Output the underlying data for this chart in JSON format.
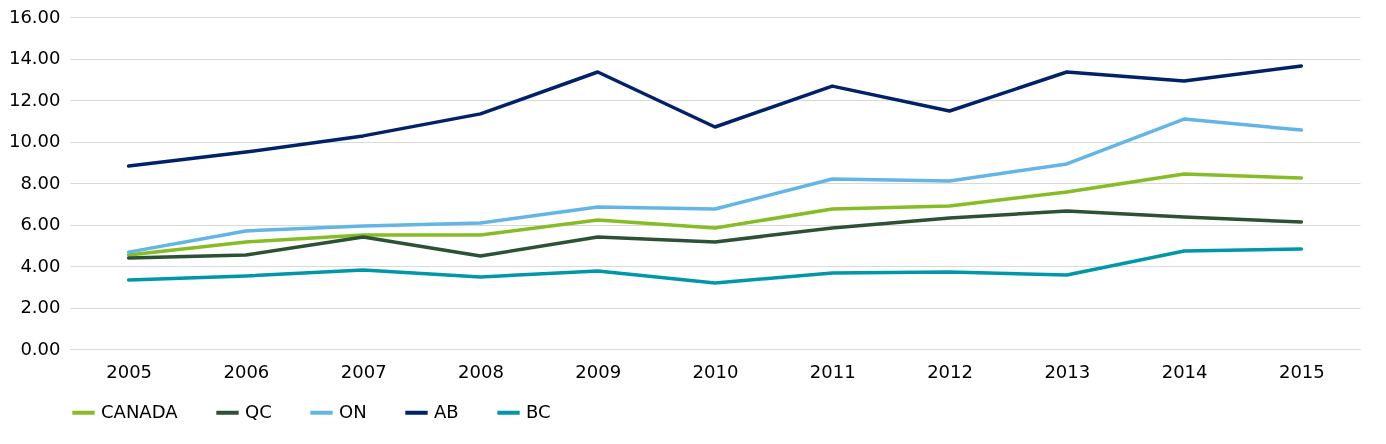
{
  "chart_data": {
    "type": "line",
    "categories": [
      "2005",
      "2006",
      "2007",
      "2008",
      "2009",
      "2010",
      "2011",
      "2012",
      "2013",
      "2014",
      "2015"
    ],
    "series": [
      {
        "name": "CANADA",
        "color": "#86bc25",
        "values": [
          4.53,
          5.16,
          5.49,
          5.49,
          6.22,
          5.83,
          6.75,
          6.89,
          7.57,
          8.43,
          8.24
        ]
      },
      {
        "name": "QC",
        "color": "#2c5234",
        "values": [
          4.39,
          4.53,
          5.4,
          4.48,
          5.4,
          5.16,
          5.83,
          6.31,
          6.65,
          6.36,
          6.12
        ]
      },
      {
        "name": "ON",
        "color": "#62b5e5",
        "values": [
          4.67,
          5.69,
          5.93,
          6.07,
          6.84,
          6.75,
          8.19,
          8.1,
          8.92,
          11.08,
          10.55
        ]
      },
      {
        "name": "AB",
        "color": "#012169",
        "values": [
          8.82,
          9.49,
          10.27,
          11.33,
          13.35,
          10.7,
          12.67,
          11.47,
          13.35,
          12.92,
          13.64
        ]
      },
      {
        "name": "BC",
        "color": "#0097a9",
        "values": [
          3.33,
          3.52,
          3.81,
          3.47,
          3.76,
          3.18,
          3.66,
          3.71,
          3.57,
          4.72,
          4.82
        ]
      }
    ],
    "ylim": [
      0,
      16
    ],
    "yticks": [
      {
        "value": 0,
        "label": "0.00"
      },
      {
        "value": 2,
        "label": "2.00"
      },
      {
        "value": 4,
        "label": "4.00"
      },
      {
        "value": 6,
        "label": "6.00"
      },
      {
        "value": 8,
        "label": "8.00"
      },
      {
        "value": 10,
        "label": "10.00"
      },
      {
        "value": 12,
        "label": "12.00"
      },
      {
        "value": 14,
        "label": "14.00"
      },
      {
        "value": 16,
        "label": "16.00"
      }
    ],
    "grid": "y",
    "legend": "bottom",
    "marker": "none",
    "line_style": "solid"
  }
}
